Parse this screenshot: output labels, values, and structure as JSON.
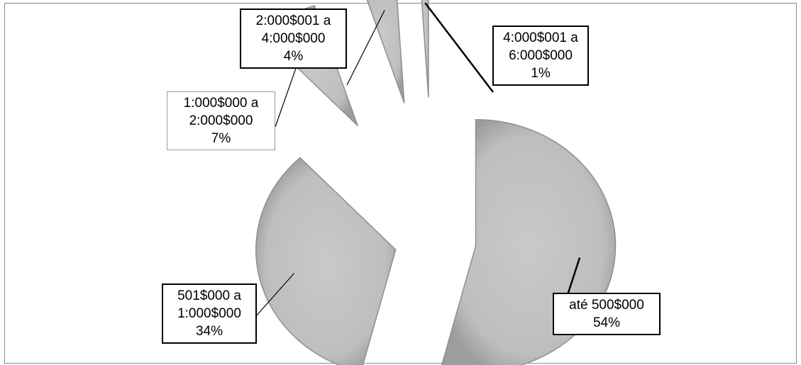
{
  "chart_data": {
    "type": "pie",
    "exploded": true,
    "slices": [
      {
        "label_line1": "até 500$000",
        "label_line2": "",
        "percent_label": "54%",
        "value": 54
      },
      {
        "label_line1": "501$000 a",
        "label_line2": "1:000$000",
        "percent_label": "34%",
        "value": 34
      },
      {
        "label_line1": "1:000$000 a",
        "label_line2": "2:000$000",
        "percent_label": "7%",
        "value": 7
      },
      {
        "label_line1": "2:000$001 a",
        "label_line2": "4:000$000",
        "percent_label": "4%",
        "value": 4
      },
      {
        "label_line1": "4:000$001 a",
        "label_line2": "6:000$000",
        "percent_label": "1%",
        "value": 1
      }
    ],
    "colors": {
      "slice_fill": "#bdbdbd",
      "slice_stroke": "#8f8f8f",
      "leader": "#000000"
    }
  }
}
